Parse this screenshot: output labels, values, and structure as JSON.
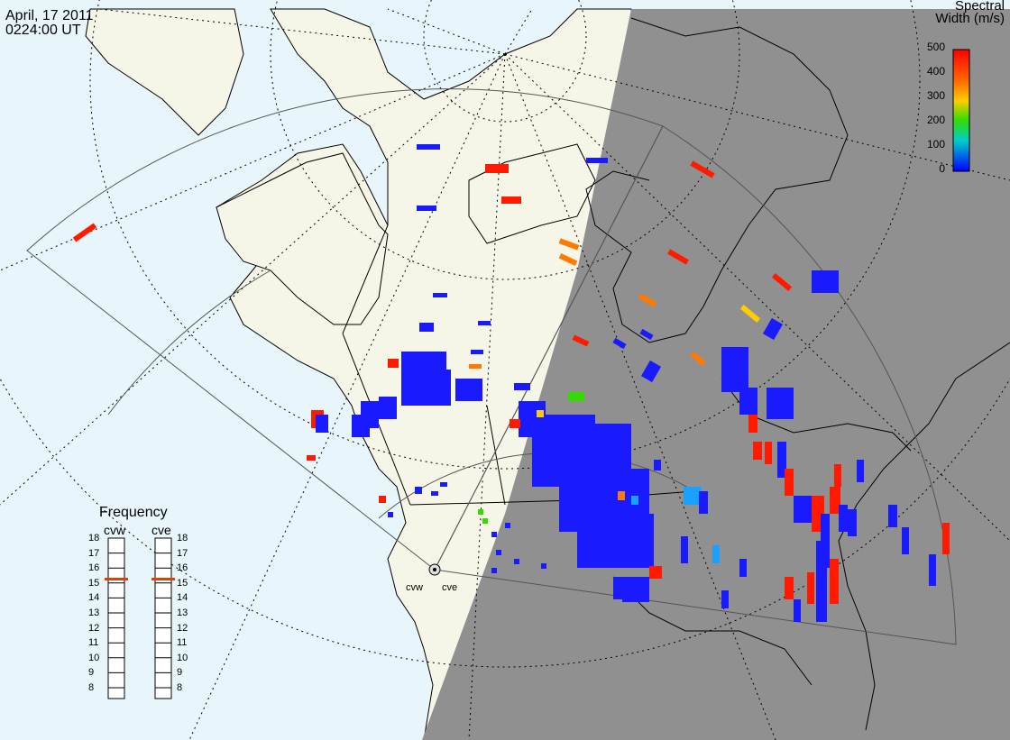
{
  "header": {
    "date": "April, 17 2011",
    "time": "0224:00 UT"
  },
  "colorbar": {
    "title_line1": "Spectral",
    "title_line2": "Width (m/s)",
    "ticks": [
      "500",
      "400",
      "300",
      "200",
      "100",
      "0"
    ],
    "colors": [
      "#ff0000",
      "#ff6600",
      "#ffcc00",
      "#33dd00",
      "#00cccc",
      "#0000ff"
    ]
  },
  "frequency": {
    "title": "Frequency",
    "radars": [
      {
        "name": "cvw",
        "selected": "15.5"
      },
      {
        "name": "cve",
        "selected": "15.5"
      }
    ],
    "levels": [
      "18",
      "17",
      "16",
      "15",
      "14",
      "13",
      "12",
      "11",
      "10",
      "9",
      "8"
    ]
  },
  "radars": [
    "cvw",
    "cve"
  ],
  "map_colors": {
    "ocean": "#e8f6fb",
    "land": "#f6f6e8",
    "night": "#909090",
    "scatter_blue": "#1a1aff"
  }
}
